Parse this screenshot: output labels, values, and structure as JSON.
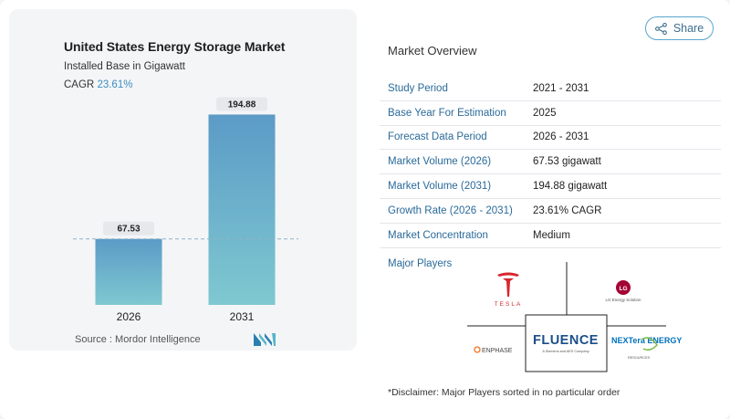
{
  "chart_data": {
    "type": "bar",
    "title": "United States Energy Storage Market",
    "subtitle": "Installed Base in Gigawatt",
    "cagr_label": "CAGR",
    "cagr_value": "23.61%",
    "categories": [
      "2026",
      "2031"
    ],
    "values": [
      67.53,
      194.88
    ],
    "value_labels": [
      "67.53",
      "194.88"
    ],
    "ylim": [
      0,
      200
    ],
    "reference_line_value": 67.53,
    "grid": false,
    "bar_colors": [
      "#6aa8cf",
      "#7cc6cf"
    ],
    "bar_gradient_top": "#5b9bc7",
    "bar_gradient_bottom": "#7fc8d0"
  },
  "source": {
    "label": "Source :",
    "name": "Mordor Intelligence"
  },
  "share": {
    "label": "Share",
    "icon": "share-icon"
  },
  "overview": {
    "title": "Market Overview",
    "rows": [
      {
        "key": "Study Period",
        "value": "2021 - 2031"
      },
      {
        "key": "Base Year For Estimation",
        "value": "2025"
      },
      {
        "key": "Forecast Data Period",
        "value": "2026 - 2031"
      },
      {
        "key": "Market Volume (2026)",
        "value": "67.53 gigawatt"
      },
      {
        "key": "Market Volume (2031)",
        "value": "194.88 gigawatt"
      },
      {
        "key": "Growth Rate (2026 - 2031)",
        "value": "23.61% CAGR"
      },
      {
        "key": "Market Concentration",
        "value": "Medium"
      }
    ]
  },
  "players": {
    "title": "Major Players",
    "logos": [
      {
        "name": "TESLA",
        "color": "#d7262d"
      },
      {
        "name": "LG Energy Solution",
        "color": "#a50034"
      },
      {
        "name": "ENPHASE",
        "color": "#f37321"
      },
      {
        "name": "FLUENCE",
        "sub": "A Siemens and AES Company",
        "color": "#1b4f8a"
      },
      {
        "name": "NEXTera ENERGY",
        "sub": "RESOURCES",
        "color": "#0071bc"
      }
    ]
  },
  "disclaimer": "*Disclaimer: Major Players sorted in no particular order"
}
